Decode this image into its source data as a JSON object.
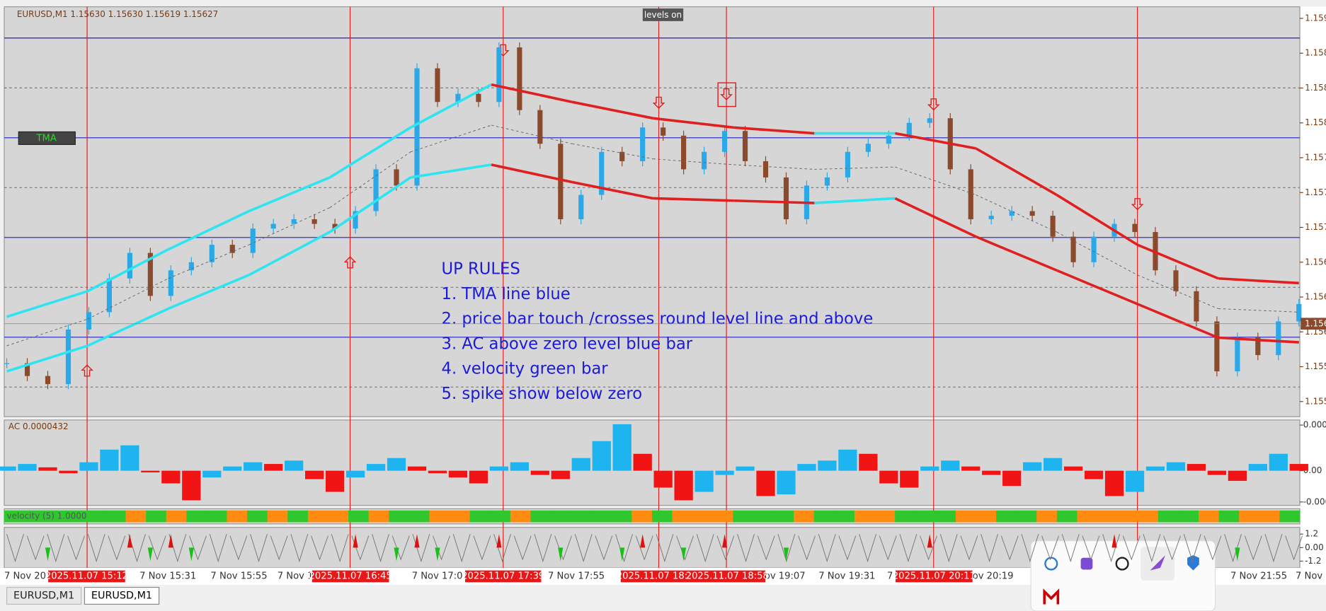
{
  "window": {
    "symbol_info": "EURUSD,M1  1.15630 1.15630 1.15619 1.15627",
    "levels_badge": "levels on",
    "tma_button": "TMA",
    "notes": [
      "UP RULES",
      "1. TMA line blue",
      "2. price bar touch /crosses round level line and above",
      "3. AC above zero level blue bar",
      "4. velocity green bar",
      "5. spike show below zero"
    ],
    "tabs": [
      "EURUSD,M1",
      "EURUSD,M1"
    ]
  },
  "time_axis": {
    "labels": [
      "7 Nov 2025",
      "7 Nov 15:31",
      "7 Nov 15:55",
      "7 Nov 16",
      "7 Nov 17:07",
      "7 Nov 17:55",
      "ov 19:07",
      "7 Nov 19:31",
      "7",
      "ov 20:19",
      "7 Nov 21:55",
      "7 Nov 2"
    ],
    "markers": [
      "2025.11.07 15:12",
      "2025.11.07 16:45",
      "2025.11.07 17:39",
      "2025.11.07 18:3",
      "2025.11.07 18:58",
      "2025.11.07 20:11"
    ]
  },
  "chart_data": [
    {
      "type": "candlestick",
      "ylim": [
        1.15547,
        1.159
      ],
      "yticks": [
        {
          "value": 1.1589,
          "label": "1.159"
        },
        {
          "value": 1.1586,
          "label": "1.158"
        },
        {
          "value": 1.1583,
          "label": "1.158"
        },
        {
          "value": 1.158,
          "label": "1.158"
        },
        {
          "value": 1.1577,
          "label": "1.157"
        },
        {
          "value": 1.1574,
          "label": "1.157"
        },
        {
          "value": 1.1571,
          "label": "1.157"
        },
        {
          "value": 1.1568,
          "label": "1.156"
        },
        {
          "value": 1.1565,
          "label": "1.156"
        },
        {
          "value": 1.1562,
          "label": "1.156"
        },
        {
          "value": 1.1559,
          "label": "1.155"
        },
        {
          "value": 1.1556,
          "label": "1.155"
        }
      ],
      "current_price": {
        "value": 1.15627,
        "label": "1.156"
      },
      "close": [
        1.15593,
        1.15582,
        1.15575,
        1.15622,
        1.15637,
        1.15666,
        1.15688,
        1.15651,
        1.15673,
        1.1568,
        1.15695,
        1.15688,
        1.15709,
        1.15713,
        1.15717,
        1.15713,
        1.15709,
        1.15724,
        1.1576,
        1.15746,
        1.15847,
        1.15818,
        1.15825,
        1.15818,
        1.15865,
        1.15811,
        1.15782,
        1.15717,
        1.15738,
        1.15775,
        1.15767,
        1.15796,
        1.15789,
        1.1576,
        1.15775,
        1.15793,
        1.15767,
        1.15753,
        1.15717,
        1.15746,
        1.15753,
        1.15775,
        1.15782,
        1.15789,
        1.158,
        1.15804,
        1.1576,
        1.15717,
        1.1572,
        1.15724,
        1.1572,
        1.15702,
        1.1568,
        1.15702,
        1.15713,
        1.15706,
        1.15673,
        1.15655,
        1.15629,
        1.15586,
        1.15615,
        1.156,
        1.15629,
        1.15644
      ],
      "tma_upper": [
        1.15633,
        1.15655,
        1.15691,
        1.15724,
        1.15753,
        1.15796,
        1.15833,
        1.15818,
        1.15804,
        1.15796,
        1.15791,
        1.15791,
        1.15778,
        1.15738,
        1.15695,
        1.15666,
        1.15662
      ],
      "tma_middle": [
        1.15608,
        1.15631,
        1.15666,
        1.15695,
        1.15727,
        1.15775,
        1.15798,
        1.15782,
        1.15769,
        1.15764,
        1.1576,
        1.15762,
        1.15738,
        1.15706,
        1.15669,
        1.1564,
        1.15637
      ],
      "tma_lower": [
        1.15586,
        1.15608,
        1.1564,
        1.15669,
        1.15706,
        1.15753,
        1.15764,
        1.15749,
        1.15735,
        1.15733,
        1.15731,
        1.15735,
        1.15702,
        1.15673,
        1.15644,
        1.15615,
        1.15611
      ]
    },
    {
      "type": "bar",
      "label": "AC 0.0000432",
      "ylim": [
        -4.1e-05,
        6e-05
      ],
      "yticks": [
        {
          "value": 5.4e-05,
          "label": "0.000"
        },
        {
          "value": 0,
          "label": "0.00"
        },
        {
          "value": -3.7e-05,
          "label": "-0.000"
        }
      ],
      "values": [
        5e-06,
        8e-06,
        4e-06,
        -3e-06,
        1e-05,
        2.5e-05,
        3e-05,
        -2e-06,
        -1.5e-05,
        -3.5e-05,
        -8e-06,
        5e-06,
        1e-05,
        8e-06,
        1.2e-05,
        -1e-05,
        -2.5e-05,
        -8e-06,
        8e-06,
        1.5e-05,
        5e-06,
        -3e-06,
        -8e-06,
        -1.5e-05,
        5e-06,
        1e-05,
        -5e-06,
        -1e-05,
        1.5e-05,
        3.5e-05,
        5.5e-05,
        2e-05,
        -2e-05,
        -3.5e-05,
        -2.5e-05,
        -5e-06,
        5e-06,
        -3e-05,
        -2.8e-05,
        8e-06,
        1.2e-05,
        2.5e-05,
        2e-05,
        -1.5e-05,
        -2e-05,
        5e-06,
        1.2e-05,
        5e-06,
        -5e-06,
        -1.8e-05,
        1e-05,
        1.5e-05,
        5e-06,
        -1e-05,
        -3e-05,
        -2.5e-05,
        5e-06,
        1e-05,
        8e-06,
        -5e-06,
        -1.2e-05,
        8e-06,
        2e-05,
        8e-06
      ]
    },
    {
      "type": "strip",
      "label": "velocity (5) 1.0000",
      "values": [
        1,
        1,
        1,
        1,
        1,
        1,
        -1,
        1,
        -1,
        1,
        1,
        -1,
        1,
        -1,
        1,
        -1,
        -1,
        1,
        -1,
        1,
        1,
        -1,
        -1,
        1,
        1,
        -1,
        1,
        1,
        1,
        1,
        1,
        -1,
        1,
        -1,
        -1,
        -1,
        1,
        1,
        1,
        -1,
        1,
        1,
        -1,
        -1,
        1,
        1,
        1,
        -1,
        -1,
        1,
        1,
        -1,
        1,
        -1,
        -1,
        -1,
        -1,
        1,
        1,
        -1,
        1,
        -1,
        -1,
        1
      ]
    },
    {
      "type": "spike",
      "ylim": [
        -1.8,
        1.8
      ],
      "yticks": [
        1.2,
        {
          "value": 0,
          "label": "0.00"
        },
        -1.2
      ],
      "values": [
        0,
        0,
        -1.2,
        0,
        0,
        0,
        1.2,
        -1.2,
        1.2,
        -1.2,
        0,
        0,
        0,
        0,
        0,
        0,
        0,
        1.2,
        0,
        -1.2,
        1.2,
        -1.2,
        0,
        0,
        1.2,
        0,
        0,
        -1.2,
        0,
        0,
        -1.2,
        1.2,
        0,
        -1.2,
        0,
        1.2,
        0,
        0,
        -1.2,
        0,
        0,
        0,
        0,
        0,
        0,
        1.2,
        0,
        0,
        0,
        0,
        0,
        0,
        0,
        0,
        1.2,
        0,
        0,
        0,
        0,
        0,
        -1.2,
        0,
        0,
        0
      ]
    }
  ]
}
